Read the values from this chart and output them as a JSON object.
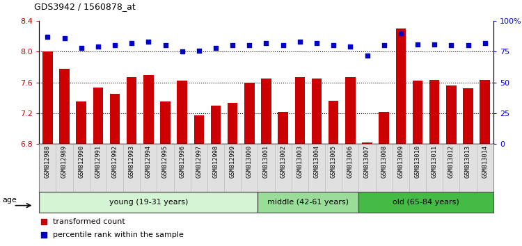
{
  "title": "GDS3942 / 1560878_at",
  "samples": [
    "GSM812988",
    "GSM812989",
    "GSM812990",
    "GSM812991",
    "GSM812992",
    "GSM812993",
    "GSM812994",
    "GSM812995",
    "GSM812996",
    "GSM812997",
    "GSM812998",
    "GSM812999",
    "GSM813000",
    "GSM813001",
    "GSM813002",
    "GSM813003",
    "GSM813004",
    "GSM813005",
    "GSM813006",
    "GSM813007",
    "GSM813008",
    "GSM813009",
    "GSM813010",
    "GSM813011",
    "GSM813012",
    "GSM813013",
    "GSM813014"
  ],
  "bar_values": [
    8.0,
    7.78,
    7.35,
    7.53,
    7.45,
    7.67,
    7.7,
    7.35,
    7.62,
    7.17,
    7.3,
    7.33,
    7.6,
    7.65,
    7.22,
    7.67,
    7.65,
    7.36,
    7.67,
    6.82,
    7.22,
    8.3,
    7.62,
    7.63,
    7.56,
    7.52,
    7.63
  ],
  "percentile_values": [
    87,
    86,
    78,
    79,
    80,
    82,
    83,
    80,
    75,
    76,
    78,
    80,
    80,
    82,
    80,
    83,
    82,
    80,
    79,
    72,
    80,
    90,
    81,
    81,
    80,
    80,
    82
  ],
  "bar_color": "#cc0000",
  "dot_color": "#0000cc",
  "ylim_left": [
    6.8,
    8.4
  ],
  "ylim_right": [
    0,
    100
  ],
  "yticks_left": [
    6.8,
    7.2,
    7.6,
    8.0,
    8.4
  ],
  "yticks_right": [
    0,
    25,
    50,
    75,
    100
  ],
  "ytick_labels_right": [
    "0",
    "25",
    "50",
    "75",
    "100%"
  ],
  "groups": [
    {
      "label": "young (19-31 years)",
      "start": 0,
      "end": 13,
      "color": "#d4f5d4"
    },
    {
      "label": "middle (42-61 years)",
      "start": 13,
      "end": 19,
      "color": "#99dd99"
    },
    {
      "label": "old (65-84 years)",
      "start": 19,
      "end": 27,
      "color": "#44bb44"
    }
  ],
  "age_label": "age",
  "legend_bar_label": "transformed count",
  "legend_dot_label": "percentile rank within the sample",
  "bar_bottom": 6.8,
  "tick_label_color_left": "#cc0000",
  "tick_label_color_right": "#0000cc",
  "xlabel_bg": "#dddddd",
  "grid_dotted_vals": [
    7.2,
    7.6,
    8.0
  ]
}
